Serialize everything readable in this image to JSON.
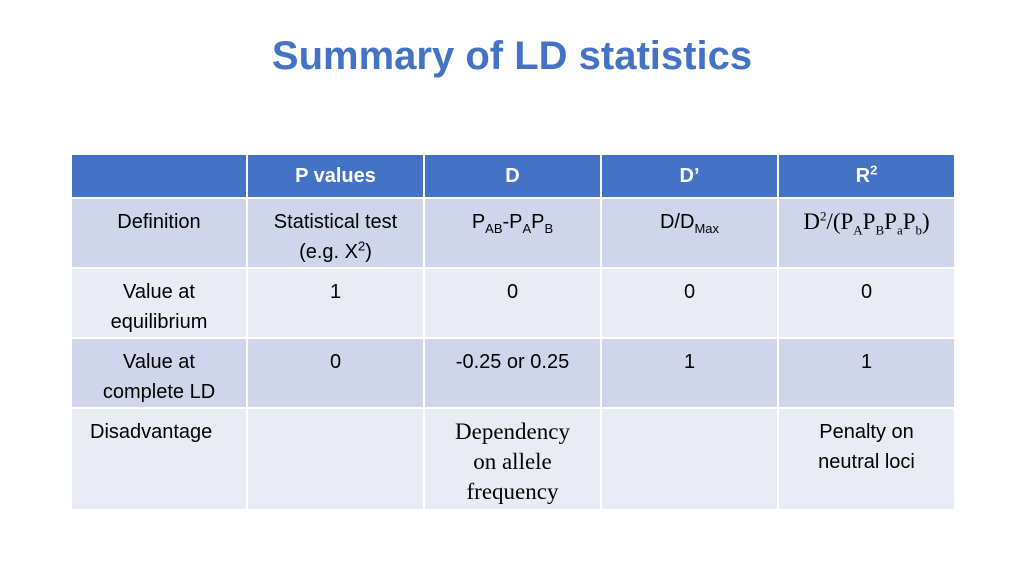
{
  "title": "Summary of LD statistics",
  "table": {
    "header": {
      "blank": "",
      "col1": "P values",
      "col2": "D",
      "col3": "D’",
      "col4_base": "R",
      "col4_sup": "2"
    },
    "definition": {
      "label": "Definition",
      "pvalue_line1": "Statistical test",
      "pvalue_line2a": "(e.g. X",
      "pvalue_line2sup": "2",
      "pvalue_line2b": ")",
      "d_p1": "P",
      "d_s1": "AB",
      "d_p2": "-P",
      "d_s2": "A",
      "d_p3": "P",
      "d_s3": "B",
      "dprime_base": "D/D",
      "dprime_sub": "Max",
      "r2_a": "D",
      "r2_sup": "2",
      "r2_b": "/(P",
      "r2_s1": "A",
      "r2_c": "P",
      "r2_s2": "B",
      "r2_d": "P",
      "r2_s3": "a",
      "r2_e": "P",
      "r2_s4": "b",
      "r2_f": ")"
    },
    "equilibrium": {
      "label_line1": "Value at",
      "label_line2": "equilibrium",
      "pvalue": "1",
      "d": "0",
      "dprime": "0",
      "r2": "0"
    },
    "complete_ld": {
      "label_line1": "Value at",
      "label_line2": "complete LD",
      "pvalue": "0",
      "d": "-0.25 or 0.25",
      "dprime": "1",
      "r2": "1"
    },
    "disadvantage": {
      "label": "Disadvantage",
      "pvalue": "",
      "d_line1": "Dependency",
      "d_line2": "on allele",
      "d_line3": "frequency",
      "dprime": "",
      "r2_line1": "Penalty on",
      "r2_line2": "neutral loci"
    }
  }
}
